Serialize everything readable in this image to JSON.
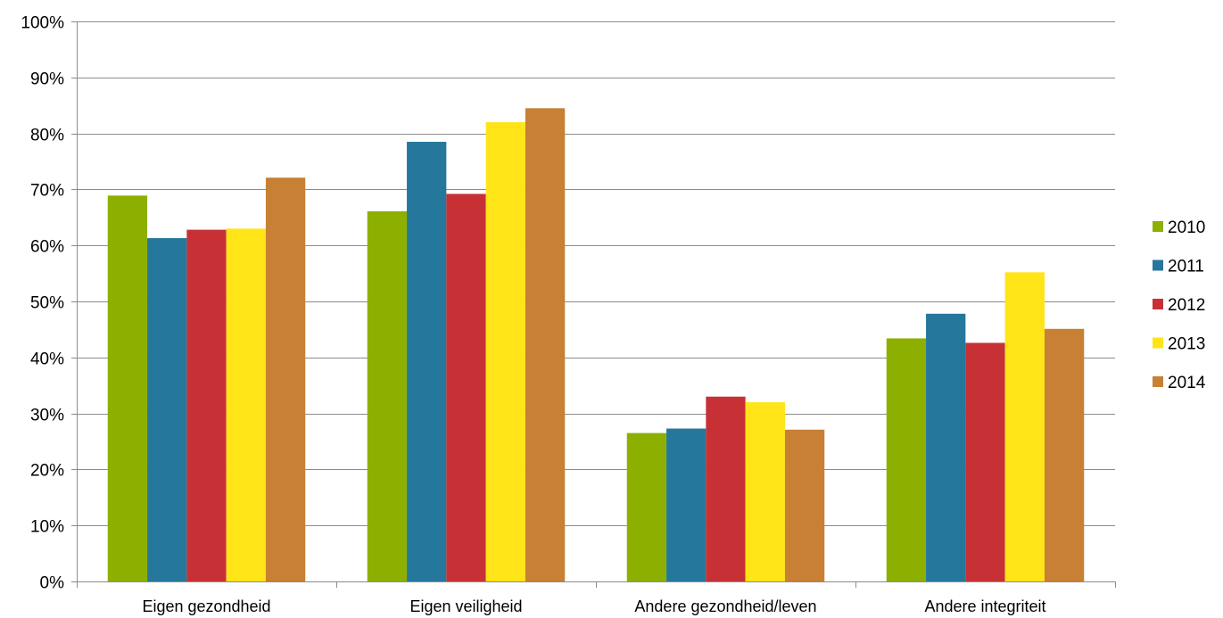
{
  "chart_data": {
    "type": "bar",
    "title": "",
    "xlabel": "",
    "ylabel": "",
    "ylim": [
      0,
      100
    ],
    "y_ticks": [
      "0%",
      "10%",
      "20%",
      "30%",
      "40%",
      "50%",
      "60%",
      "70%",
      "80%",
      "90%",
      "100%"
    ],
    "grid": true,
    "legend_position": "right",
    "categories": [
      "Eigen gezondheid",
      "Eigen veiligheid",
      "Andere gezondheid/leven",
      "Andere integriteit"
    ],
    "series": [
      {
        "name": "2010",
        "color": "#8db000",
        "values": [
          68.9,
          66.1,
          26.5,
          43.4
        ]
      },
      {
        "name": "2011",
        "color": "#25779c",
        "values": [
          61.3,
          78.5,
          27.3,
          47.8
        ]
      },
      {
        "name": "2012",
        "color": "#c73135",
        "values": [
          62.8,
          69.2,
          33.0,
          42.6
        ]
      },
      {
        "name": "2013",
        "color": "#ffe417",
        "values": [
          63.0,
          82.0,
          32.0,
          55.2
        ]
      },
      {
        "name": "2014",
        "color": "#c78034",
        "values": [
          72.1,
          84.5,
          27.1,
          45.1
        ]
      }
    ]
  }
}
